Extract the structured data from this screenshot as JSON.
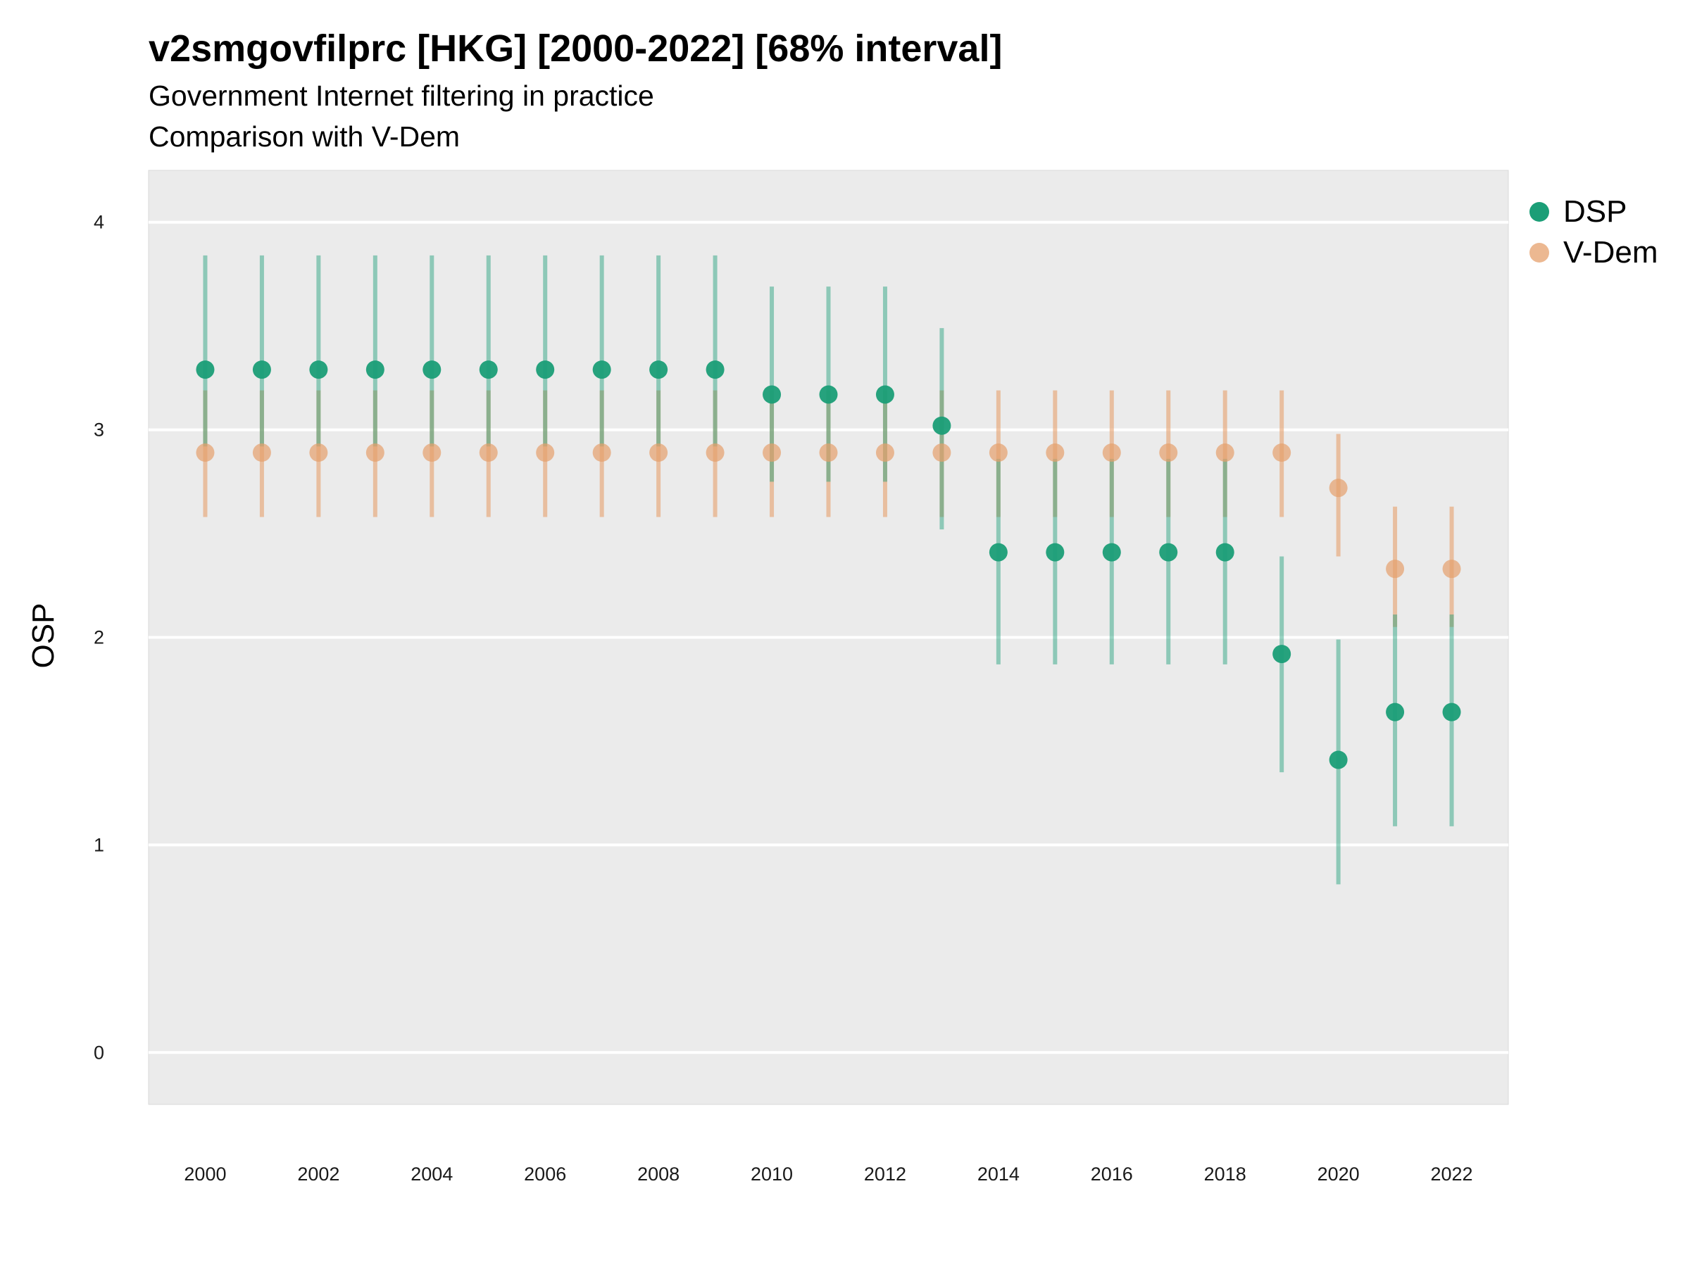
{
  "chart_data": {
    "type": "scatter",
    "title": "v2smgovfilprc [HKG] [2000-2022] [68% interval]",
    "subtitle": "Government Internet filtering in practice",
    "caption": "Comparison with V-Dem",
    "xlabel": "",
    "ylabel": "OSP",
    "x": [
      2000,
      2001,
      2002,
      2003,
      2004,
      2005,
      2006,
      2007,
      2008,
      2009,
      2010,
      2011,
      2012,
      2013,
      2014,
      2015,
      2016,
      2017,
      2018,
      2019,
      2020,
      2021,
      2022
    ],
    "x_ticks": [
      "2000",
      "2002",
      "2004",
      "2006",
      "2008",
      "2010",
      "2012",
      "2014",
      "2016",
      "2018",
      "2020",
      "2022"
    ],
    "y_ticks": [
      "0",
      "1",
      "2",
      "3",
      "4"
    ],
    "xlim": [
      1999,
      2023
    ],
    "ylim": [
      -0.25,
      4.25
    ],
    "grid": "horizontal",
    "legend_position": "right",
    "series": [
      {
        "name": "DSP",
        "color": "#1b9e77",
        "values": [
          3.29,
          3.29,
          3.29,
          3.29,
          3.29,
          3.29,
          3.29,
          3.29,
          3.29,
          3.29,
          3.17,
          3.17,
          3.17,
          3.02,
          2.41,
          2.41,
          2.41,
          2.41,
          2.41,
          1.92,
          1.41,
          1.64,
          1.64
        ],
        "lower": [
          2.92,
          2.92,
          2.92,
          2.92,
          2.92,
          2.92,
          2.92,
          2.92,
          2.92,
          2.92,
          2.75,
          2.75,
          2.75,
          2.52,
          1.87,
          1.87,
          1.87,
          1.87,
          1.87,
          1.35,
          0.81,
          1.09,
          1.09
        ],
        "upper": [
          3.84,
          3.84,
          3.84,
          3.84,
          3.84,
          3.84,
          3.84,
          3.84,
          3.84,
          3.84,
          3.69,
          3.69,
          3.69,
          3.49,
          2.86,
          2.86,
          2.86,
          2.86,
          2.86,
          2.39,
          1.99,
          2.11,
          2.11
        ]
      },
      {
        "name": "V-Dem",
        "color": "#e6a06c",
        "values": [
          2.89,
          2.89,
          2.89,
          2.89,
          2.89,
          2.89,
          2.89,
          2.89,
          2.89,
          2.89,
          2.89,
          2.89,
          2.89,
          2.89,
          2.89,
          2.89,
          2.89,
          2.89,
          2.89,
          2.89,
          2.72,
          2.33,
          2.33
        ],
        "lower": [
          2.58,
          2.58,
          2.58,
          2.58,
          2.58,
          2.58,
          2.58,
          2.58,
          2.58,
          2.58,
          2.58,
          2.58,
          2.58,
          2.58,
          2.58,
          2.58,
          2.58,
          2.58,
          2.58,
          2.58,
          2.39,
          2.05,
          2.05
        ],
        "upper": [
          3.19,
          3.19,
          3.19,
          3.19,
          3.19,
          3.19,
          3.19,
          3.19,
          3.19,
          3.19,
          3.19,
          3.19,
          3.19,
          3.19,
          3.19,
          3.19,
          3.19,
          3.19,
          3.19,
          3.19,
          2.98,
          2.63,
          2.63
        ]
      }
    ]
  }
}
